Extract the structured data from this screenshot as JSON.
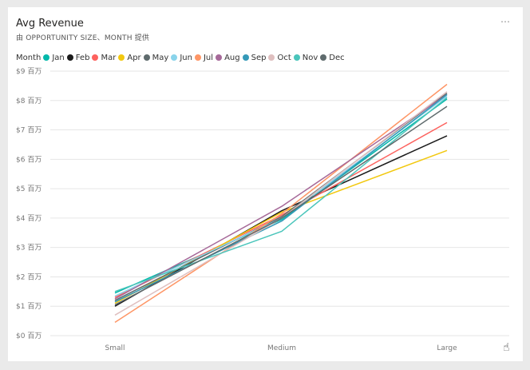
{
  "header": {
    "title": "Avg Revenue",
    "subtitle": "由 OPPORTUNITY SIZE、MONTH 提供",
    "more_icon": "⋯"
  },
  "legend": {
    "title": "Month"
  },
  "chart_data": {
    "type": "line",
    "title": "Avg Revenue",
    "categories": [
      "Small",
      "Medium",
      "Large"
    ],
    "ylim": [
      0,
      9
    ],
    "y_ticks": [
      "$0 百万",
      "$1 百万",
      "$2 百万",
      "$3 百万",
      "$4 百万",
      "$5 百万",
      "$6 百万",
      "$7 百万",
      "$8 百万",
      "$9 百万"
    ],
    "grid": true,
    "legend_position": "top-left",
    "series": [
      {
        "name": "Jan",
        "color": "#01B8AA",
        "values": [
          1.45,
          3.95,
          8.05
        ]
      },
      {
        "name": "Feb",
        "color": "#1B1B1B",
        "values": [
          1.0,
          4.25,
          6.8
        ]
      },
      {
        "name": "Mar",
        "color": "#FD625E",
        "values": [
          1.3,
          4.1,
          7.25
        ]
      },
      {
        "name": "Apr",
        "color": "#F2C80F",
        "values": [
          1.1,
          4.2,
          6.3
        ]
      },
      {
        "name": "May",
        "color": "#5F6B6D",
        "values": [
          1.2,
          4.05,
          8.25
        ]
      },
      {
        "name": "Jun",
        "color": "#8AD4EB",
        "values": [
          1.35,
          4.0,
          8.15
        ]
      },
      {
        "name": "Jul",
        "color": "#FE9666",
        "values": [
          0.45,
          4.15,
          8.55
        ]
      },
      {
        "name": "Aug",
        "color": "#A66999",
        "values": [
          1.25,
          4.4,
          8.2
        ]
      },
      {
        "name": "Sep",
        "color": "#3599B8",
        "values": [
          1.15,
          3.9,
          8.2
        ]
      },
      {
        "name": "Oct",
        "color": "#DFBFBF",
        "values": [
          0.7,
          4.0,
          8.3
        ]
      },
      {
        "name": "Nov",
        "color": "#4AC5BB",
        "values": [
          1.5,
          3.55,
          8.1
        ]
      },
      {
        "name": "Dec",
        "color": "#5F6B6D",
        "values": [
          1.05,
          4.0,
          7.8
        ]
      }
    ]
  },
  "cursor_icon": "☝"
}
